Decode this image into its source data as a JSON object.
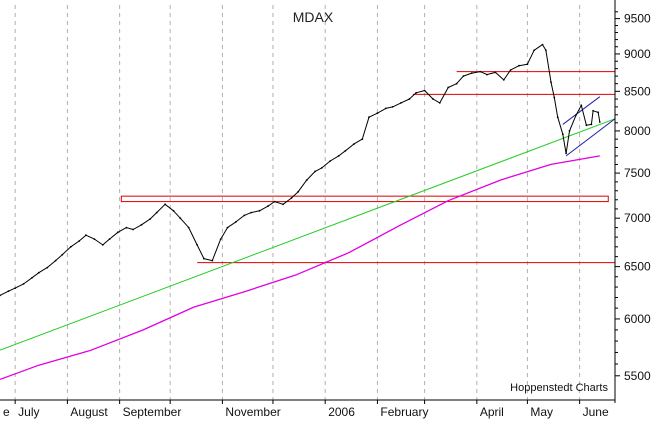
{
  "chart_data": {
    "type": "line",
    "title": "MDAX",
    "source_label": "Hoppenstedt Charts",
    "y_scale": "log",
    "ylim": [
      5300,
      9700
    ],
    "y_ticks": [
      5500,
      6000,
      6500,
      7000,
      7500,
      8000,
      8500,
      9000,
      9500
    ],
    "x_range": [
      "2005-06-22",
      "2006-06-22"
    ],
    "month_ticks": [
      "2005-07-01",
      "2005-08-01",
      "2005-09-01",
      "2005-10-01",
      "2005-11-01",
      "2005-12-01",
      "2006-01-01",
      "2006-02-01",
      "2006-03-01",
      "2006-04-01",
      "2006-05-01",
      "2006-06-01"
    ],
    "x_labels": [
      {
        "text": "e",
        "date": "2005-06-22"
      },
      {
        "text": "July",
        "date": "2005-07-01"
      },
      {
        "text": "August",
        "date": "2005-08-01"
      },
      {
        "text": "September",
        "date": "2005-09-01"
      },
      {
        "text": "November",
        "date": "2005-11-01"
      },
      {
        "text": "2006",
        "date": "2006-01-01"
      },
      {
        "text": "February",
        "date": "2006-02-01"
      },
      {
        "text": "April",
        "date": "2006-04-01"
      },
      {
        "text": "May",
        "date": "2006-05-01"
      },
      {
        "text": "June",
        "date": "2006-06-01"
      }
    ],
    "grid": {
      "vertical": true,
      "horizontal": false
    },
    "colors": {
      "price": "#000000",
      "moving_average": "#e000e0",
      "trend": "#22cc22",
      "support_resistance": "#dd0000",
      "channel": "#2020aa",
      "grid": "#b0b0b0"
    },
    "series": [
      {
        "role": "price",
        "points": [
          [
            "2005-06-22",
            6220
          ],
          [
            "2005-06-27",
            6260
          ],
          [
            "2005-07-01",
            6290
          ],
          [
            "2005-07-06",
            6330
          ],
          [
            "2005-07-11",
            6390
          ],
          [
            "2005-07-15",
            6440
          ],
          [
            "2005-07-20",
            6490
          ],
          [
            "2005-07-25",
            6560
          ],
          [
            "2005-07-29",
            6620
          ],
          [
            "2005-08-03",
            6700
          ],
          [
            "2005-08-08",
            6760
          ],
          [
            "2005-08-12",
            6820
          ],
          [
            "2005-08-17",
            6780
          ],
          [
            "2005-08-22",
            6720
          ],
          [
            "2005-08-26",
            6780
          ],
          [
            "2005-08-31",
            6850
          ],
          [
            "2005-09-05",
            6900
          ],
          [
            "2005-09-09",
            6880
          ],
          [
            "2005-09-14",
            6930
          ],
          [
            "2005-09-19",
            6990
          ],
          [
            "2005-09-23",
            7060
          ],
          [
            "2005-09-28",
            7150
          ],
          [
            "2005-10-03",
            7080
          ],
          [
            "2005-10-07",
            7000
          ],
          [
            "2005-10-12",
            6900
          ],
          [
            "2005-10-17",
            6720
          ],
          [
            "2005-10-21",
            6580
          ],
          [
            "2005-10-26",
            6560
          ],
          [
            "2005-10-31",
            6780
          ],
          [
            "2005-11-04",
            6900
          ],
          [
            "2005-11-09",
            6960
          ],
          [
            "2005-11-14",
            7030
          ],
          [
            "2005-11-18",
            7060
          ],
          [
            "2005-11-23",
            7080
          ],
          [
            "2005-11-28",
            7130
          ],
          [
            "2005-12-02",
            7180
          ],
          [
            "2005-12-07",
            7150
          ],
          [
            "2005-12-12",
            7220
          ],
          [
            "2005-12-16",
            7290
          ],
          [
            "2005-12-21",
            7420
          ],
          [
            "2005-12-26",
            7520
          ],
          [
            "2005-12-30",
            7560
          ],
          [
            "2006-01-04",
            7640
          ],
          [
            "2006-01-09",
            7700
          ],
          [
            "2006-01-13",
            7760
          ],
          [
            "2006-01-18",
            7840
          ],
          [
            "2006-01-23",
            7900
          ],
          [
            "2006-01-27",
            8170
          ],
          [
            "2006-02-01",
            8220
          ],
          [
            "2006-02-06",
            8280
          ],
          [
            "2006-02-10",
            8300
          ],
          [
            "2006-02-15",
            8350
          ],
          [
            "2006-02-20",
            8400
          ],
          [
            "2006-02-24",
            8480
          ],
          [
            "2006-03-01",
            8510
          ],
          [
            "2006-03-06",
            8400
          ],
          [
            "2006-03-10",
            8350
          ],
          [
            "2006-03-15",
            8550
          ],
          [
            "2006-03-20",
            8600
          ],
          [
            "2006-03-24",
            8700
          ],
          [
            "2006-03-29",
            8740
          ],
          [
            "2006-04-03",
            8760
          ],
          [
            "2006-04-07",
            8720
          ],
          [
            "2006-04-12",
            8750
          ],
          [
            "2006-04-17",
            8650
          ],
          [
            "2006-04-21",
            8780
          ],
          [
            "2006-04-26",
            8840
          ],
          [
            "2006-05-01",
            8860
          ],
          [
            "2006-05-05",
            9050
          ],
          [
            "2006-05-10",
            9130
          ],
          [
            "2006-05-12",
            9050
          ],
          [
            "2006-05-15",
            8620
          ],
          [
            "2006-05-17",
            8420
          ],
          [
            "2006-05-19",
            8170
          ],
          [
            "2006-05-22",
            7960
          ],
          [
            "2006-05-24",
            7730
          ],
          [
            "2006-05-26",
            8000
          ],
          [
            "2006-05-30",
            8200
          ],
          [
            "2006-06-02",
            8320
          ],
          [
            "2006-06-05",
            8070
          ],
          [
            "2006-06-08",
            8080
          ],
          [
            "2006-06-09",
            8250
          ],
          [
            "2006-06-12",
            8230
          ],
          [
            "2006-06-13",
            8110
          ]
        ]
      },
      {
        "role": "moving_average",
        "points": [
          [
            "2005-06-22",
            5470
          ],
          [
            "2005-07-15",
            5590
          ],
          [
            "2005-08-15",
            5720
          ],
          [
            "2005-09-15",
            5900
          ],
          [
            "2005-10-15",
            6110
          ],
          [
            "2005-11-15",
            6260
          ],
          [
            "2005-12-15",
            6420
          ],
          [
            "2006-01-15",
            6640
          ],
          [
            "2006-02-15",
            6930
          ],
          [
            "2006-03-15",
            7190
          ],
          [
            "2006-04-15",
            7420
          ],
          [
            "2006-05-15",
            7600
          ],
          [
            "2006-06-13",
            7700
          ]
        ]
      }
    ],
    "annotations": [
      {
        "kind": "trend_line",
        "from": [
          "2005-06-22",
          5720
        ],
        "to": [
          "2006-06-22",
          8150
        ]
      },
      {
        "kind": "channel_line",
        "from": [
          "2006-05-22",
          8080
        ],
        "to": [
          "2006-06-13",
          8430
        ]
      },
      {
        "kind": "channel_line",
        "from": [
          "2006-05-24",
          7700
        ],
        "to": [
          "2006-06-22",
          8150
        ]
      },
      {
        "kind": "horizontal_line",
        "y": 6540,
        "x_from": "2005-10-17",
        "x_to": "2006-06-22"
      },
      {
        "kind": "horizontal_line",
        "y": 8460,
        "x_from": "2006-02-22",
        "x_to": "2006-06-22"
      },
      {
        "kind": "horizontal_line",
        "y": 8760,
        "x_from": "2006-03-20",
        "x_to": "2006-06-22"
      },
      {
        "kind": "horizontal_band",
        "y_low": 7180,
        "y_high": 7240,
        "x_from": "2005-09-02",
        "x_to": "2006-06-18"
      }
    ]
  }
}
